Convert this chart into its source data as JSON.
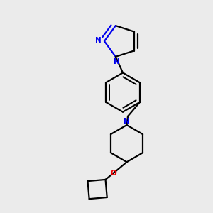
{
  "bg_color": "#ebebeb",
  "bond_color": "#000000",
  "N_color": "#0000ee",
  "O_color": "#ee0000",
  "bond_width": 1.6,
  "figsize": [
    3.0,
    3.0
  ],
  "dpi": 100,
  "xlim": [
    0.1,
    0.9
  ],
  "ylim": [
    0.02,
    0.98
  ]
}
